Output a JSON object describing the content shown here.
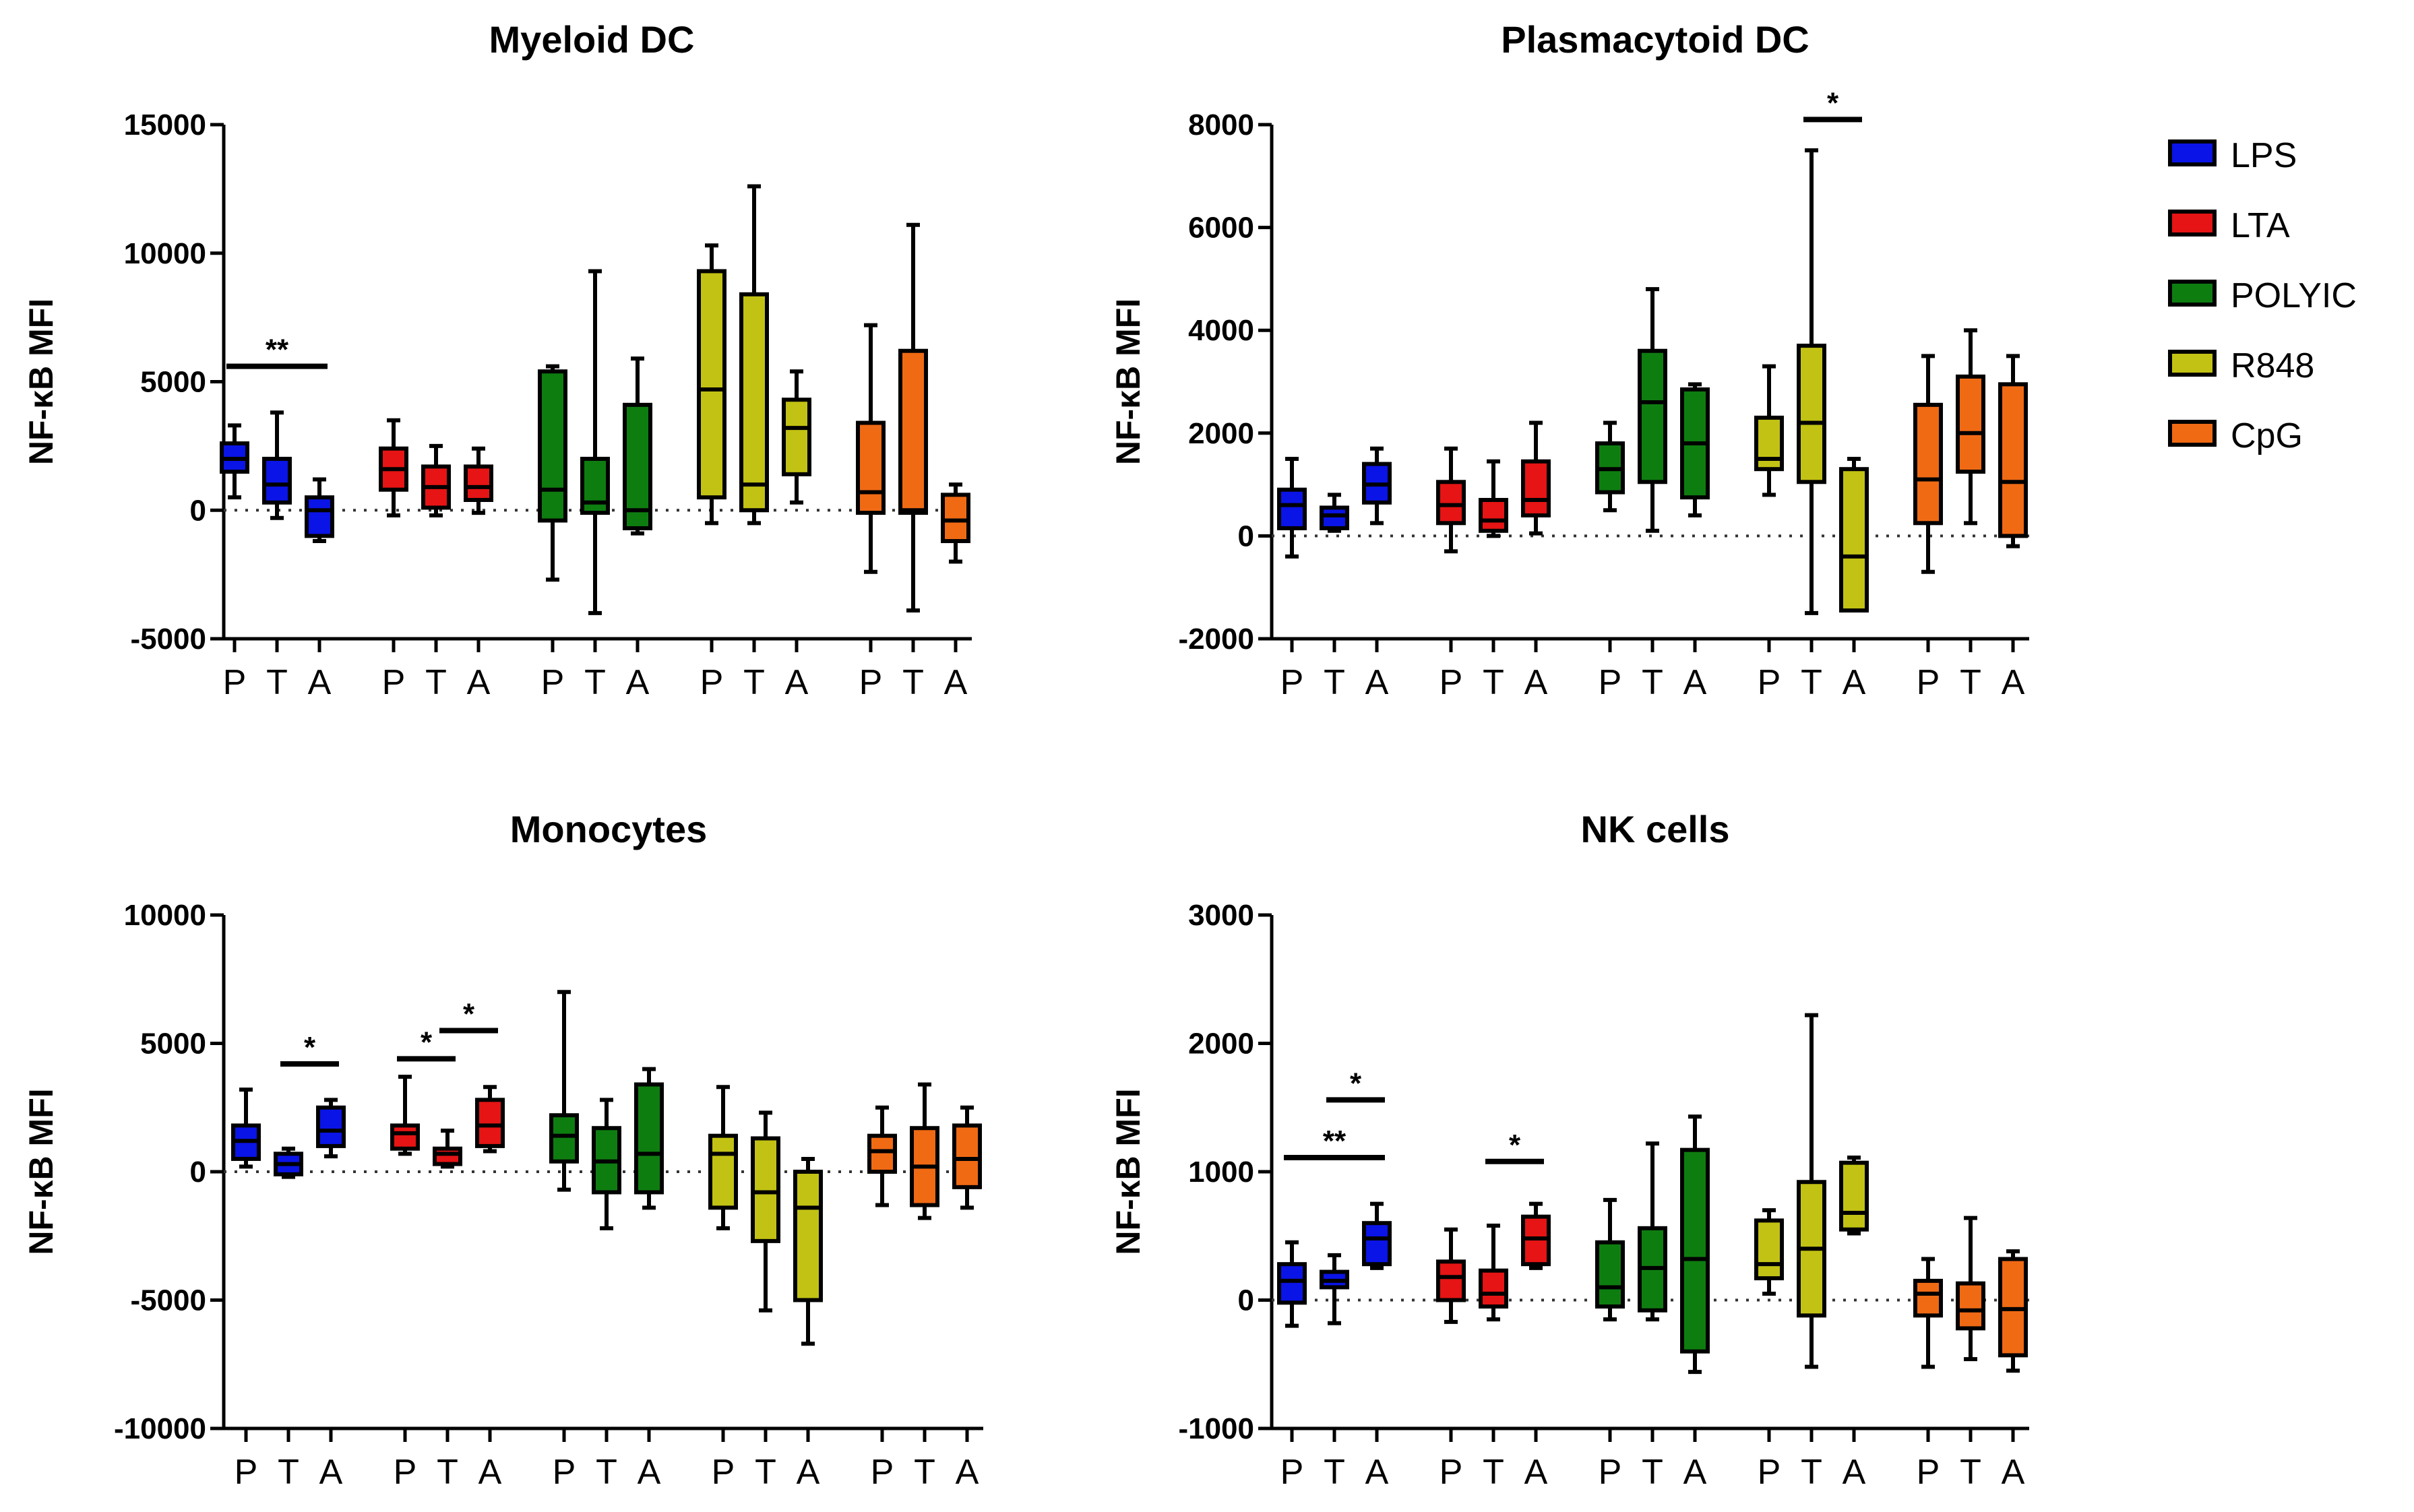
{
  "chart_data": [
    {
      "type": "box",
      "title": "Myeloid DC",
      "ylabel": "NF-κB MFI",
      "ylim": [
        -5000,
        15000
      ],
      "yticks": [
        -5000,
        0,
        5000,
        10000,
        15000
      ],
      "ytick_labels": [
        "-5000",
        "0",
        "5000",
        "10000",
        "15000"
      ],
      "groups": [
        "LPS",
        "LTA",
        "POLYIC",
        "R848",
        "CpG"
      ],
      "conditions": [
        "P",
        "T",
        "A"
      ],
      "boxes": [
        {
          "group": "LPS",
          "cond": "P",
          "min": 500,
          "q1": 1500,
          "median": 2000,
          "q3": 2600,
          "max": 3300
        },
        {
          "group": "LPS",
          "cond": "T",
          "min": -300,
          "q1": 300,
          "median": 1000,
          "q3": 2000,
          "max": 3800
        },
        {
          "group": "LPS",
          "cond": "A",
          "min": -1200,
          "q1": -1000,
          "median": 0,
          "q3": 500,
          "max": 1200
        },
        {
          "group": "LTA",
          "cond": "P",
          "min": -200,
          "q1": 800,
          "median": 1600,
          "q3": 2400,
          "max": 3500
        },
        {
          "group": "LTA",
          "cond": "T",
          "min": -200,
          "q1": 100,
          "median": 900,
          "q3": 1700,
          "max": 2500
        },
        {
          "group": "LTA",
          "cond": "A",
          "min": -100,
          "q1": 400,
          "median": 900,
          "q3": 1700,
          "max": 2400
        },
        {
          "group": "POLYIC",
          "cond": "P",
          "min": -2700,
          "q1": -400,
          "median": 800,
          "q3": 5400,
          "max": 5600
        },
        {
          "group": "POLYIC",
          "cond": "T",
          "min": -4000,
          "q1": -100,
          "median": 300,
          "q3": 2000,
          "max": 9300
        },
        {
          "group": "POLYIC",
          "cond": "A",
          "min": -900,
          "q1": -700,
          "median": 0,
          "q3": 4100,
          "max": 5900
        },
        {
          "group": "R848",
          "cond": "P",
          "min": -500,
          "q1": 500,
          "median": 4700,
          "q3": 9300,
          "max": 10300
        },
        {
          "group": "R848",
          "cond": "T",
          "min": -500,
          "q1": 0,
          "median": 1000,
          "q3": 8400,
          "max": 12600
        },
        {
          "group": "R848",
          "cond": "A",
          "min": 300,
          "q1": 1400,
          "median": 3200,
          "q3": 4300,
          "max": 5400
        },
        {
          "group": "CpG",
          "cond": "P",
          "min": -2400,
          "q1": -100,
          "median": 700,
          "q3": 3400,
          "max": 7200
        },
        {
          "group": "CpG",
          "cond": "T",
          "min": -3900,
          "q1": -100,
          "median": 0,
          "q3": 6200,
          "max": 11100
        },
        {
          "group": "CpG",
          "cond": "A",
          "min": -2000,
          "q1": -1200,
          "median": -400,
          "q3": 600,
          "max": 1000
        }
      ],
      "significance": [
        {
          "label": "**",
          "group_from": 0,
          "cond_from": 0,
          "group_to": 0,
          "cond_to": 2,
          "y": 5600
        }
      ]
    },
    {
      "type": "box",
      "title": "Plasmacytoid DC",
      "ylabel": "NF-κB MFI",
      "ylim": [
        -2000,
        8000
      ],
      "yticks": [
        -2000,
        0,
        2000,
        4000,
        6000,
        8000
      ],
      "ytick_labels": [
        "-2000",
        "0",
        "2000",
        "4000",
        "6000",
        "8000"
      ],
      "groups": [
        "LPS",
        "LTA",
        "POLYIC",
        "R848",
        "CpG"
      ],
      "conditions": [
        "P",
        "T",
        "A"
      ],
      "boxes": [
        {
          "group": "LPS",
          "cond": "P",
          "min": -400,
          "q1": 150,
          "median": 600,
          "q3": 900,
          "max": 1500
        },
        {
          "group": "LPS",
          "cond": "T",
          "min": 100,
          "q1": 150,
          "median": 400,
          "q3": 550,
          "max": 800
        },
        {
          "group": "LPS",
          "cond": "A",
          "min": 250,
          "q1": 650,
          "median": 1000,
          "q3": 1400,
          "max": 1700
        },
        {
          "group": "LTA",
          "cond": "P",
          "min": -300,
          "q1": 250,
          "median": 600,
          "q3": 1050,
          "max": 1700
        },
        {
          "group": "LTA",
          "cond": "T",
          "min": 0,
          "q1": 100,
          "median": 300,
          "q3": 700,
          "max": 1450
        },
        {
          "group": "LTA",
          "cond": "A",
          "min": 50,
          "q1": 400,
          "median": 700,
          "q3": 1450,
          "max": 2200
        },
        {
          "group": "POLYIC",
          "cond": "P",
          "min": 500,
          "q1": 850,
          "median": 1300,
          "q3": 1800,
          "max": 2200
        },
        {
          "group": "POLYIC",
          "cond": "T",
          "min": 100,
          "q1": 1050,
          "median": 2600,
          "q3": 3600,
          "max": 4800
        },
        {
          "group": "POLYIC",
          "cond": "A",
          "min": 400,
          "q1": 750,
          "median": 1800,
          "q3": 2850,
          "max": 2950
        },
        {
          "group": "R848",
          "cond": "P",
          "min": 800,
          "q1": 1300,
          "median": 1500,
          "q3": 2300,
          "max": 3300
        },
        {
          "group": "R848",
          "cond": "T",
          "min": -1500,
          "q1": 1050,
          "median": 2200,
          "q3": 3700,
          "max": 7500
        },
        {
          "group": "R848",
          "cond": "A",
          "min": -1450,
          "q1": -1450,
          "median": -400,
          "q3": 1300,
          "max": 1500
        },
        {
          "group": "CpG",
          "cond": "P",
          "min": -700,
          "q1": 250,
          "median": 1100,
          "q3": 2550,
          "max": 3500
        },
        {
          "group": "CpG",
          "cond": "T",
          "min": 250,
          "q1": 1250,
          "median": 2000,
          "q3": 3100,
          "max": 4000
        },
        {
          "group": "CpG",
          "cond": "A",
          "min": -200,
          "q1": 0,
          "median": 1050,
          "q3": 2950,
          "max": 3500
        }
      ],
      "significance": [
        {
          "label": "*",
          "group_from": 3,
          "cond_from": 1,
          "group_to": 3,
          "cond_to": 2,
          "y": 8100
        }
      ]
    },
    {
      "type": "box",
      "title": "Monocytes",
      "ylabel": "NF-κB MFI",
      "ylim": [
        -10000,
        10000
      ],
      "yticks": [
        -10000,
        -5000,
        0,
        5000,
        10000
      ],
      "ytick_labels": [
        "-10000",
        "-5000",
        "0",
        "5000",
        "10000"
      ],
      "groups": [
        "LPS",
        "LTA",
        "POLYIC",
        "R848",
        "CpG"
      ],
      "conditions": [
        "P",
        "T",
        "A"
      ],
      "boxes": [
        {
          "group": "LPS",
          "cond": "P",
          "min": 200,
          "q1": 500,
          "median": 1200,
          "q3": 1800,
          "max": 3200
        },
        {
          "group": "LPS",
          "cond": "T",
          "min": -200,
          "q1": -100,
          "median": 300,
          "q3": 700,
          "max": 900
        },
        {
          "group": "LPS",
          "cond": "A",
          "min": 600,
          "q1": 1000,
          "median": 1600,
          "q3": 2500,
          "max": 2800
        },
        {
          "group": "LTA",
          "cond": "P",
          "min": 700,
          "q1": 900,
          "median": 1500,
          "q3": 1800,
          "max": 3700
        },
        {
          "group": "LTA",
          "cond": "T",
          "min": 200,
          "q1": 300,
          "median": 700,
          "q3": 900,
          "max": 1600
        },
        {
          "group": "LTA",
          "cond": "A",
          "min": 800,
          "q1": 1000,
          "median": 1800,
          "q3": 2800,
          "max": 3300
        },
        {
          "group": "POLYIC",
          "cond": "P",
          "min": -700,
          "q1": 400,
          "median": 1400,
          "q3": 2200,
          "max": 7000
        },
        {
          "group": "POLYIC",
          "cond": "T",
          "min": -2200,
          "q1": -800,
          "median": 400,
          "q3": 1700,
          "max": 2800
        },
        {
          "group": "POLYIC",
          "cond": "A",
          "min": -1400,
          "q1": -800,
          "median": 700,
          "q3": 3400,
          "max": 4000
        },
        {
          "group": "R848",
          "cond": "P",
          "min": -2200,
          "q1": -1400,
          "median": 700,
          "q3": 1400,
          "max": 3300
        },
        {
          "group": "R848",
          "cond": "T",
          "min": -5400,
          "q1": -2700,
          "median": -800,
          "q3": 1300,
          "max": 2300
        },
        {
          "group": "R848",
          "cond": "A",
          "min": -6700,
          "q1": -5000,
          "median": -1400,
          "q3": 0,
          "max": 500
        },
        {
          "group": "CpG",
          "cond": "P",
          "min": -1300,
          "q1": 0,
          "median": 800,
          "q3": 1400,
          "max": 2500
        },
        {
          "group": "CpG",
          "cond": "T",
          "min": -1800,
          "q1": -1300,
          "median": 200,
          "q3": 1700,
          "max": 3400
        },
        {
          "group": "CpG",
          "cond": "A",
          "min": -1400,
          "q1": -600,
          "median": 500,
          "q3": 1800,
          "max": 2500
        }
      ],
      "significance": [
        {
          "label": "*",
          "group_from": 0,
          "cond_from": 1,
          "group_to": 0,
          "cond_to": 2,
          "y": 4200
        },
        {
          "label": "*",
          "group_from": 1,
          "cond_from": 0,
          "group_to": 1,
          "cond_to": 1,
          "y": 4400
        },
        {
          "label": "*",
          "group_from": 1,
          "cond_from": 1,
          "group_to": 1,
          "cond_to": 2,
          "y": 5500
        }
      ]
    },
    {
      "type": "box",
      "title": "NK cells",
      "ylabel": "NF-κB MFI",
      "ylim": [
        -1000,
        3000
      ],
      "yticks": [
        -1000,
        0,
        1000,
        2000,
        3000
      ],
      "ytick_labels": [
        "-1000",
        "0",
        "1000",
        "2000",
        "3000"
      ],
      "groups": [
        "LPS",
        "LTA",
        "POLYIC",
        "R848",
        "CpG"
      ],
      "conditions": [
        "P",
        "T",
        "A"
      ],
      "boxes": [
        {
          "group": "LPS",
          "cond": "P",
          "min": -200,
          "q1": -20,
          "median": 150,
          "q3": 280,
          "max": 450
        },
        {
          "group": "LPS",
          "cond": "T",
          "min": -180,
          "q1": 100,
          "median": 150,
          "q3": 220,
          "max": 350
        },
        {
          "group": "LPS",
          "cond": "A",
          "min": 250,
          "q1": 280,
          "median": 480,
          "q3": 600,
          "max": 750
        },
        {
          "group": "LTA",
          "cond": "P",
          "min": -170,
          "q1": 0,
          "median": 180,
          "q3": 300,
          "max": 550
        },
        {
          "group": "LTA",
          "cond": "T",
          "min": -150,
          "q1": -50,
          "median": 50,
          "q3": 230,
          "max": 580
        },
        {
          "group": "LTA",
          "cond": "A",
          "min": 250,
          "q1": 280,
          "median": 480,
          "q3": 650,
          "max": 750
        },
        {
          "group": "POLYIC",
          "cond": "P",
          "min": -150,
          "q1": -50,
          "median": 100,
          "q3": 450,
          "max": 780
        },
        {
          "group": "POLYIC",
          "cond": "T",
          "min": -150,
          "q1": -80,
          "median": 250,
          "q3": 560,
          "max": 1220
        },
        {
          "group": "POLYIC",
          "cond": "A",
          "min": -560,
          "q1": -400,
          "median": 320,
          "q3": 1170,
          "max": 1430
        },
        {
          "group": "R848",
          "cond": "P",
          "min": 50,
          "q1": 170,
          "median": 280,
          "q3": 620,
          "max": 700
        },
        {
          "group": "R848",
          "cond": "T",
          "min": -520,
          "q1": -120,
          "median": 400,
          "q3": 920,
          "max": 2220
        },
        {
          "group": "R848",
          "cond": "A",
          "min": 520,
          "q1": 550,
          "median": 680,
          "q3": 1070,
          "max": 1110
        },
        {
          "group": "CpG",
          "cond": "P",
          "min": -520,
          "q1": -120,
          "median": 50,
          "q3": 150,
          "max": 320
        },
        {
          "group": "CpG",
          "cond": "T",
          "min": -460,
          "q1": -220,
          "median": -80,
          "q3": 130,
          "max": 640
        },
        {
          "group": "CpG",
          "cond": "A",
          "min": -550,
          "q1": -430,
          "median": -70,
          "q3": 320,
          "max": 380
        }
      ],
      "significance": [
        {
          "label": "*",
          "group_from": 0,
          "cond_from": 1,
          "group_to": 0,
          "cond_to": 2,
          "y": 1560
        },
        {
          "label": "**",
          "group_from": 0,
          "cond_from": 0,
          "group_to": 0,
          "cond_to": 2,
          "y": 1110
        },
        {
          "label": "*",
          "group_from": 1,
          "cond_from": 1,
          "group_to": 1,
          "cond_to": 2,
          "y": 1080
        }
      ]
    }
  ],
  "legend": {
    "entries": [
      {
        "label": "LPS",
        "color": "#0a14e6"
      },
      {
        "label": "LTA",
        "color": "#e61414"
      },
      {
        "label": "POLYIC",
        "color": "#0e7d10"
      },
      {
        "label": "R848",
        "color": "#c2c214"
      },
      {
        "label": "CpG",
        "color": "#f06a14"
      }
    ]
  },
  "group_colors": {
    "LPS": "#0a14e6",
    "LTA": "#e61414",
    "POLYIC": "#0e7d10",
    "R848": "#c2c214",
    "CpG": "#f06a14"
  }
}
